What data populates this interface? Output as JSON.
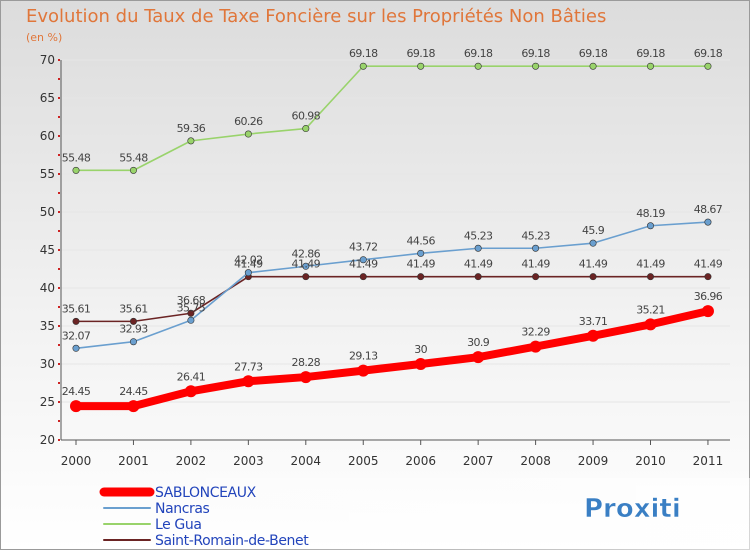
{
  "chart_data": {
    "type": "line",
    "title": "Evolution du Taux de Taxe Foncière sur les Propriétés Non Bâties",
    "subtitle": "(en %)",
    "xlabel": "",
    "ylabel": "(en %)",
    "categories": [
      "2000",
      "2001",
      "2002",
      "2003",
      "2004",
      "2005",
      "2006",
      "2007",
      "2008",
      "2009",
      "2010",
      "2011"
    ],
    "ylim": [
      20,
      70
    ],
    "yticks": [
      20,
      25,
      30,
      35,
      40,
      45,
      50,
      55,
      60,
      65,
      70
    ],
    "grid": "horizontal",
    "legend_position": "bottom-left",
    "series": [
      {
        "name": "Saint-Romain-de-Benet",
        "color": "#6b2424",
        "labels": [
          "35.61",
          "35.61",
          "36.68",
          "41.49",
          "41.49",
          "41.49",
          "41.49",
          "41.49",
          "41.49",
          "41.49",
          "41.49",
          "41.49"
        ],
        "values": [
          35.61,
          35.61,
          36.68,
          41.49,
          41.49,
          41.49,
          41.49,
          41.49,
          41.49,
          41.49,
          41.49,
          41.49
        ]
      },
      {
        "name": "Le Gua",
        "color": "#99d36b",
        "labels": [
          "55.48",
          "55.48",
          "59.36",
          "60.26",
          "60.98",
          "69.18",
          "69.18",
          "69.18",
          "69.18",
          "69.18",
          "69.18",
          "69.18"
        ],
        "values": [
          55.48,
          55.48,
          59.36,
          60.26,
          60.98,
          69.18,
          69.18,
          69.18,
          69.18,
          69.18,
          69.18,
          69.18
        ]
      },
      {
        "name": "Nancras",
        "color": "#6a9fcf",
        "labels": [
          "32.07",
          "32.93",
          "35.75",
          "42.02",
          "42.86",
          "43.72",
          "44.56",
          "45.23",
          "45.23",
          "45.9",
          "48.19",
          "48.67"
        ],
        "values": [
          32.07,
          32.93,
          35.75,
          42.02,
          42.86,
          43.72,
          44.56,
          45.23,
          45.23,
          45.9,
          48.19,
          48.67
        ]
      },
      {
        "name": "SABLONCEAUX",
        "color": "#ff0000",
        "labels": [
          "24.45",
          "24.45",
          "26.41",
          "27.73",
          "28.28",
          "29.13",
          "30",
          "30.9",
          "32.29",
          "33.71",
          "35.21",
          "36.96"
        ],
        "values": [
          24.45,
          24.45,
          26.41,
          27.73,
          28.28,
          29.13,
          30,
          30.9,
          32.29,
          33.71,
          35.21,
          36.96
        ]
      }
    ],
    "legend": [
      "SABLONCEAUX",
      "Nancras",
      "Le Gua",
      "Saint-Romain-de-Benet"
    ]
  },
  "brand": {
    "logo_text": "Proxiti"
  }
}
